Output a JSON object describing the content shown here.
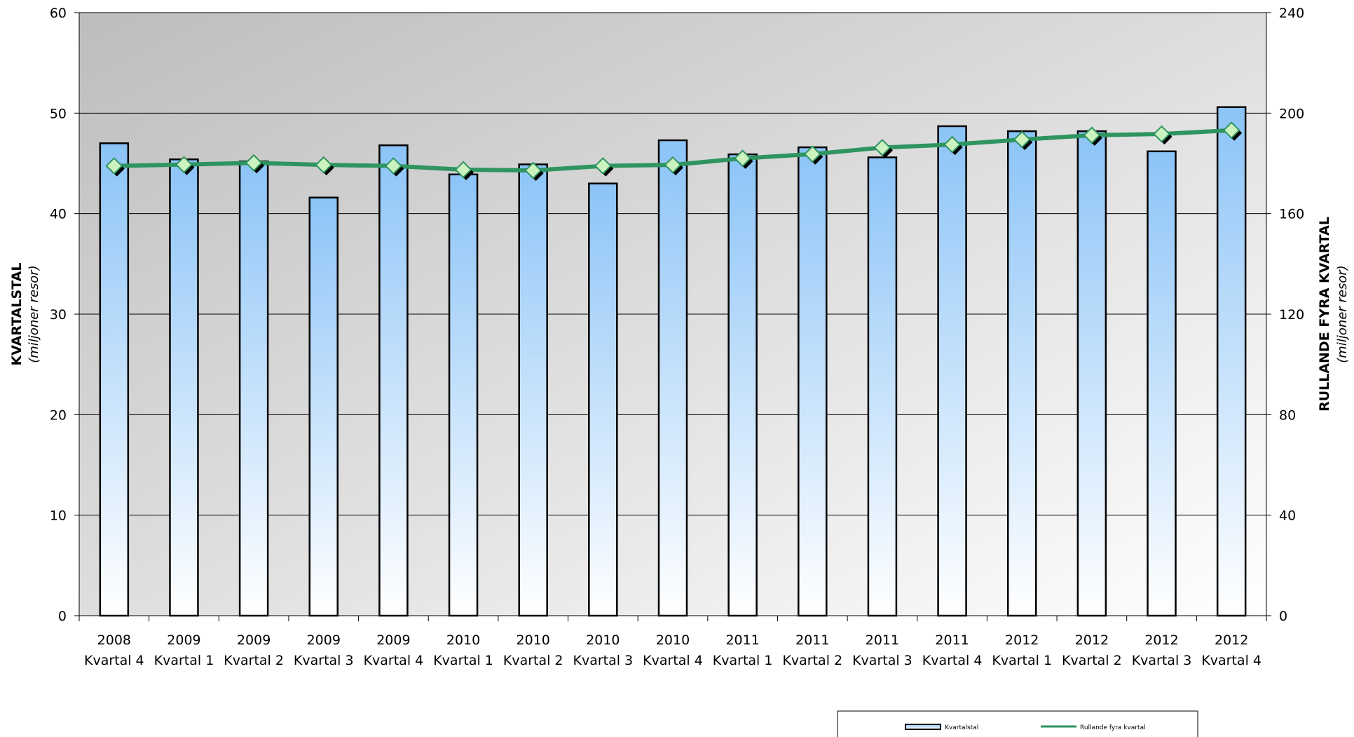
{
  "chart_data": {
    "type": "bar",
    "categories": [
      [
        "2008",
        "Kvartal 4"
      ],
      [
        "2009",
        "Kvartal 1"
      ],
      [
        "2009",
        "Kvartal 2"
      ],
      [
        "2009",
        "Kvartal 3"
      ],
      [
        "2009",
        "Kvartal 4"
      ],
      [
        "2010",
        "Kvartal 1"
      ],
      [
        "2010",
        "Kvartal 2"
      ],
      [
        "2010",
        "Kvartal 3"
      ],
      [
        "2010",
        "Kvartal 4"
      ],
      [
        "2011",
        "Kvartal 1"
      ],
      [
        "2011",
        "Kvartal 2"
      ],
      [
        "2011",
        "Kvartal 3"
      ],
      [
        "2011",
        "Kvartal 4"
      ],
      [
        "2012",
        "Kvartal 1"
      ],
      [
        "2012",
        "Kvartal 2"
      ],
      [
        "2012",
        "Kvartal 3"
      ],
      [
        "2012",
        "Kvartal 4"
      ]
    ],
    "series": [
      {
        "name": "Kvartalstal",
        "type": "bar",
        "axis": "left",
        "values": [
          47.0,
          45.4,
          45.2,
          41.6,
          46.8,
          43.9,
          44.9,
          43.0,
          47.3,
          45.9,
          46.6,
          45.6,
          48.7,
          48.2,
          48.2,
          46.2,
          50.6
        ]
      },
      {
        "name": "Rullande fyra kvartal",
        "type": "line",
        "axis": "right",
        "values": [
          179.0,
          179.5,
          180.2,
          179.4,
          179.0,
          177.5,
          177.2,
          179.0,
          179.4,
          182.0,
          183.7,
          186.3,
          187.5,
          189.5,
          191.2,
          191.7,
          193.2
        ]
      }
    ],
    "left_axis": {
      "title": "KVARTALSTAL",
      "subtitle": "(miljoner resor)",
      "min": 0,
      "max": 60,
      "step": 10
    },
    "right_axis": {
      "title": "RULLANDE FYRA KVARTAL",
      "subtitle": "(miljoner resor)",
      "min": 0,
      "max": 240,
      "step": 40
    },
    "grid": true,
    "legend_position": "bottom-right",
    "colors": {
      "bar_top": "#8cc4f7",
      "bar_bottom": "#ffffff",
      "line": "#2e9460",
      "marker_fill": "#ccf2c0",
      "marker_edge": "#2e9460",
      "plot_bg_top": "#c1c1c1",
      "plot_bg_bottom": "#ffffff"
    }
  }
}
